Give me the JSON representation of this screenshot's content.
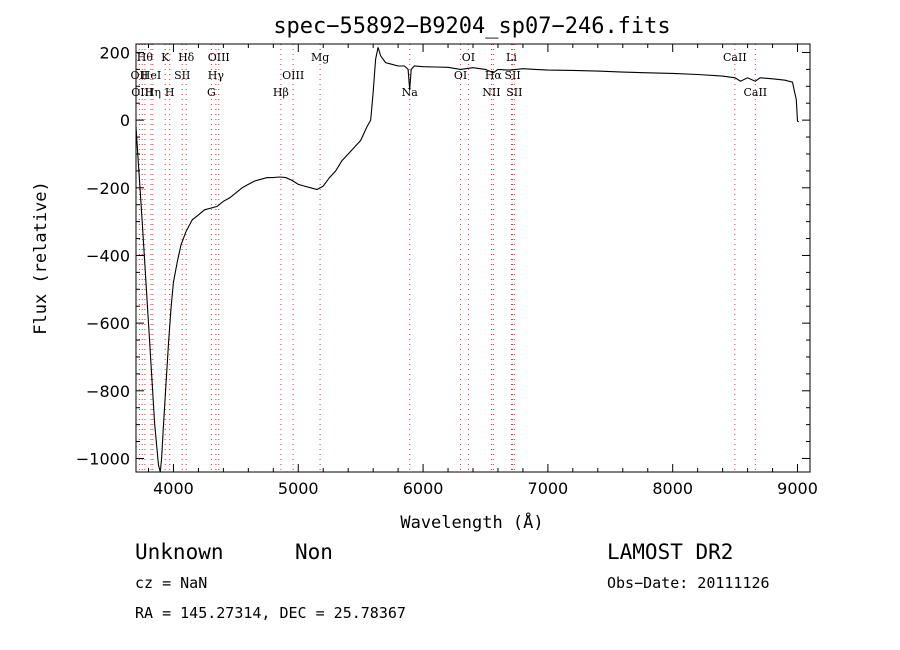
{
  "chart_data": {
    "type": "line",
    "title": "spec−55892−B9204_sp07−246.fits",
    "xlabel": "Wavelength (Å)",
    "ylabel": "Flux (relative)",
    "xlim": [
      3700,
      9100
    ],
    "ylim": [
      -1040,
      225
    ],
    "xticks": [
      {
        "value": 4000,
        "label": "4000"
      },
      {
        "value": 5000,
        "label": "5000"
      },
      {
        "value": 6000,
        "label": "6000"
      },
      {
        "value": 7000,
        "label": "7000"
      },
      {
        "value": 8000,
        "label": "8000"
      },
      {
        "value": 9000,
        "label": "9000"
      }
    ],
    "yticks": [
      {
        "value": 200,
        "label": "200"
      },
      {
        "value": 0,
        "label": "0"
      },
      {
        "value": -200,
        "label": "−200"
      },
      {
        "value": -400,
        "label": "−400"
      },
      {
        "value": -600,
        "label": "−600"
      },
      {
        "value": -800,
        "label": "−800"
      },
      {
        "value": -1000,
        "label": "−1000"
      }
    ],
    "series": [
      {
        "color": "#000000",
        "x": [
          3700,
          3750,
          3800,
          3850,
          3880,
          3895,
          3905,
          3920,
          3940,
          3960,
          3980,
          4000,
          4030,
          4060,
          4100,
          4150,
          4200,
          4250,
          4300,
          4350,
          4400,
          4450,
          4500,
          4550,
          4600,
          4650,
          4700,
          4750,
          4800,
          4850,
          4900,
          4950,
          5000,
          5050,
          5100,
          5150,
          5200,
          5250,
          5300,
          5350,
          5400,
          5450,
          5500,
          5550,
          5580,
          5600,
          5620,
          5640,
          5660,
          5700,
          5750,
          5800,
          5850,
          5880,
          5893,
          5905,
          5930,
          6000,
          6100,
          6200,
          6300,
          6400,
          6500,
          6563,
          6600,
          6700,
          6800,
          6900,
          7000,
          7200,
          7400,
          7600,
          7800,
          8000,
          8200,
          8400,
          8500,
          8542,
          8600,
          8662,
          8700,
          8800,
          8900,
          8960,
          8990,
          9000,
          9010
        ],
        "y": [
          -20,
          -300,
          -600,
          -900,
          -1020,
          -1040,
          -1000,
          -900,
          -780,
          -660,
          -560,
          -480,
          -420,
          -370,
          -330,
          -295,
          -280,
          -265,
          -260,
          -255,
          -240,
          -230,
          -215,
          -200,
          -190,
          -180,
          -175,
          -170,
          -170,
          -168,
          -170,
          -178,
          -190,
          -195,
          -200,
          -205,
          -195,
          -170,
          -150,
          -120,
          -100,
          -80,
          -60,
          -20,
          0,
          80,
          180,
          215,
          190,
          170,
          165,
          160,
          160,
          150,
          90,
          150,
          160,
          158,
          157,
          156,
          150,
          155,
          150,
          140,
          150,
          148,
          152,
          150,
          148,
          147,
          145,
          142,
          140,
          138,
          135,
          130,
          125,
          115,
          125,
          115,
          125,
          122,
          118,
          112,
          60,
          -3,
          -5
        ]
      }
    ],
    "lines": [
      {
        "x": 3727,
        "label": "OII",
        "row": 1
      },
      {
        "x": 3750,
        "label": "OIII",
        "row": 2
      },
      {
        "x": 3771,
        "label": "Hθ",
        "row": 0
      },
      {
        "x": 3820,
        "label": "HeI",
        "row": 1
      },
      {
        "x": 3835,
        "label": "Hη",
        "row": 2
      },
      {
        "x": 3934,
        "label": "K",
        "row": 0
      },
      {
        "x": 3970,
        "label": "H",
        "row": 2
      },
      {
        "x": 4070,
        "label": "SII",
        "row": 1
      },
      {
        "x": 4102,
        "label": "Hδ",
        "row": 0
      },
      {
        "x": 4340,
        "label": "Hγ",
        "row": 1
      },
      {
        "x": 4363,
        "label": "OIII",
        "row": 0
      },
      {
        "x": 4304,
        "label": "G",
        "row": 2
      },
      {
        "x": 4861,
        "label": "Hβ",
        "row": 2
      },
      {
        "x": 4959,
        "label": "OIII",
        "row": 1
      },
      {
        "x": 5175,
        "label": "Mg",
        "row": 0
      },
      {
        "x": 5893,
        "label": "Na",
        "row": 2
      },
      {
        "x": 6300,
        "label": "OI",
        "row": 1
      },
      {
        "x": 6363,
        "label": "OI",
        "row": 0
      },
      {
        "x": 6548,
        "label": "NII",
        "row": 2
      },
      {
        "x": 6563,
        "label": "Hα",
        "row": 1
      },
      {
        "x": 6708,
        "label": "Li",
        "row": 0
      },
      {
        "x": 6717,
        "label": "SII",
        "row": 1
      },
      {
        "x": 6731,
        "label": "SII",
        "row": 2
      },
      {
        "x": 8498,
        "label": "CaII",
        "row": 0
      },
      {
        "x": 8662,
        "label": "CaII",
        "row": 2
      }
    ]
  },
  "info": {
    "class": "Unknown",
    "subclass": "Non",
    "cz": "cz = NaN",
    "radec": "RA = 145.27314, DEC =  25.78367",
    "survey": "LAMOST DR2",
    "obsdate": "Obs−Date: 20111126"
  }
}
